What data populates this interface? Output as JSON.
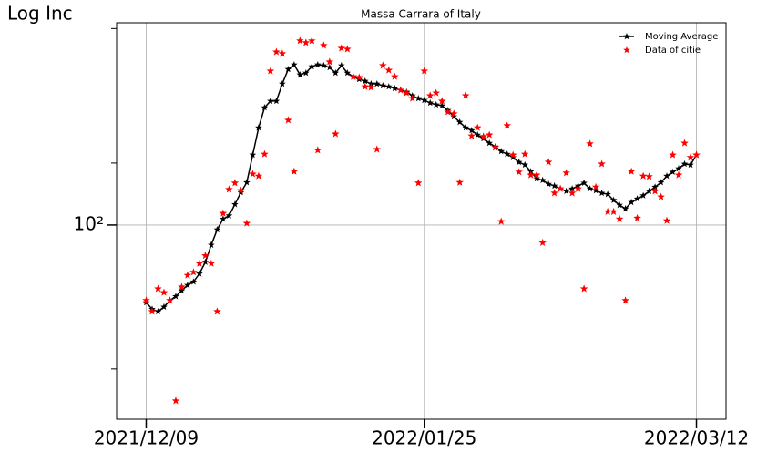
{
  "chart_data": {
    "type": "line",
    "title": "Massa Carrara of Italy",
    "ylabel": "Log Inc",
    "log_y": true,
    "grid": true,
    "legend": "upper right",
    "x": [
      "2021/12/09",
      "2021/12/10",
      "2021/12/11",
      "2021/12/12",
      "2021/12/13",
      "2021/12/14",
      "2021/12/15",
      "2021/12/16",
      "2021/12/17",
      "2021/12/18",
      "2021/12/19",
      "2021/12/20",
      "2021/12/21",
      "2021/12/22",
      "2021/12/23",
      "2021/12/24",
      "2021/12/25",
      "2021/12/26",
      "2021/12/27",
      "2021/12/28",
      "2021/12/29",
      "2021/12/30",
      "2021/12/31",
      "2022/01/01",
      "2022/01/02",
      "2022/01/03",
      "2022/01/04",
      "2022/01/05",
      "2022/01/06",
      "2022/01/07",
      "2022/01/08",
      "2022/01/09",
      "2022/01/10",
      "2022/01/11",
      "2022/01/12",
      "2022/01/13",
      "2022/01/14",
      "2022/01/15",
      "2022/01/16",
      "2022/01/17",
      "2022/01/18",
      "2022/01/19",
      "2022/01/20",
      "2022/01/21",
      "2022/01/22",
      "2022/01/23",
      "2022/01/24",
      "2022/01/25",
      "2022/01/26",
      "2022/01/27",
      "2022/01/28",
      "2022/01/29",
      "2022/01/30",
      "2022/01/31",
      "2022/02/01",
      "2022/02/02",
      "2022/02/03",
      "2022/02/04",
      "2022/02/05",
      "2022/02/06",
      "2022/02/07",
      "2022/02/08",
      "2022/02/09",
      "2022/02/10",
      "2022/02/11",
      "2022/02/12",
      "2022/02/13",
      "2022/02/14",
      "2022/02/15",
      "2022/02/16",
      "2022/02/17",
      "2022/02/18",
      "2022/02/19",
      "2022/02/20",
      "2022/02/21",
      "2022/02/22",
      "2022/02/23",
      "2022/02/24",
      "2022/02/25",
      "2022/02/26",
      "2022/02/27",
      "2022/02/28",
      "2022/03/01",
      "2022/03/02",
      "2022/03/03",
      "2022/03/04",
      "2022/03/05",
      "2022/03/06",
      "2022/03/07",
      "2022/03/08",
      "2022/03/09",
      "2022/03/10",
      "2022/03/11",
      "2022/03/12"
    ],
    "series": [
      {
        "name": "Moving Average",
        "color": "#000000",
        "style": "line",
        "values": [
          42,
          39,
          38,
          40,
          43,
          45,
          48,
          51,
          53,
          58,
          66,
          80,
          95,
          107,
          111,
          126,
          144,
          161,
          219,
          297,
          372,
          400,
          400,
          485,
          571,
          601,
          537,
          548,
          589,
          601,
          595,
          583,
          548,
          595,
          548,
          526,
          510,
          500,
          485,
          485,
          475,
          470,
          461,
          452,
          443,
          425,
          412,
          404,
          392,
          384,
          380,
          361,
          336,
          316,
          297,
          288,
          274,
          263,
          250,
          240,
          228,
          221,
          213,
          202,
          196,
          182,
          168,
          165,
          158,
          155,
          150,
          146,
          150,
          155,
          160,
          150,
          147,
          143,
          141,
          132,
          125,
          120,
          129,
          134,
          139,
          146,
          153,
          161,
          173,
          181,
          188,
          198,
          196,
          219
        ]
      },
      {
        "name": "Data of citie",
        "color": "#ff0000",
        "style": "marker",
        "values": [
          43,
          38,
          49,
          47,
          43,
          14,
          50,
          57,
          59,
          65,
          71,
          65,
          38,
          114,
          149,
          160,
          147,
          102,
          177,
          173,
          221,
          560,
          693,
          680,
          323,
          182,
          785,
          769,
          785,
          231,
          745,
          620,
          277,
          722,
          715,
          526,
          521,
          470,
          466,
          233,
          595,
          565,
          526,
          452,
          438,
          412,
          160,
          560,
          425,
          438,
          400,
          354,
          347,
          161,
          425,
          271,
          297,
          269,
          274,
          238,
          104,
          304,
          219,
          181,
          221,
          175,
          175,
          82,
          202,
          143,
          150,
          179,
          143,
          150,
          49,
          248,
          153,
          198,
          116,
          116,
          107,
          43,
          182,
          108,
          173,
          172,
          146,
          137,
          105,
          219,
          175,
          250,
          213,
          219
        ]
      }
    ],
    "xlim": [
      "2021/12/04",
      "2022/03/17"
    ],
    "xticks": [
      "2021/12/09",
      "2022/01/25",
      "2022/03/12"
    ],
    "ylim": [
      11.4,
      960
    ],
    "yticks": [
      {
        "value": 100,
        "label": "10²"
      }
    ],
    "yminorticks": [
      20,
      200,
      900
    ]
  }
}
